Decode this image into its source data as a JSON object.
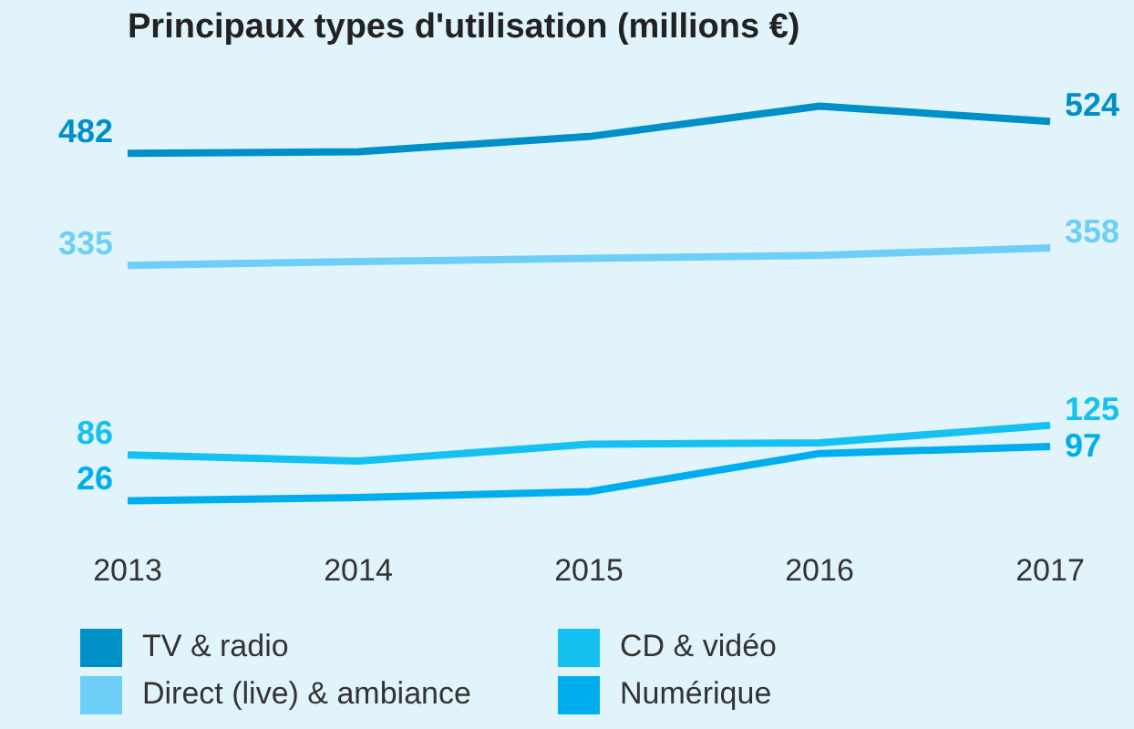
{
  "chart_data": {
    "type": "line",
    "title": "Principaux types d'utilisation (millions €)",
    "categories": [
      "2013",
      "2014",
      "2015",
      "2016",
      "2017"
    ],
    "tick_labels": "x",
    "grid": false,
    "legend": "bottom",
    "marker": "none",
    "series": [
      {
        "name": "TV & radio",
        "color": "#0090c8",
        "values": [
          482,
          484,
          504,
          544,
          524
        ],
        "value_labels": [
          "482",
          null,
          null,
          null,
          "524"
        ]
      },
      {
        "name": "Direct (live) & ambiance",
        "color": "#6dcff6",
        "values": [
          335,
          340,
          344,
          348,
          358
        ],
        "value_labels": [
          "335",
          null,
          null,
          null,
          "358"
        ]
      },
      {
        "name": "CD & vidéo",
        "color": "#14c1f0",
        "values": [
          86,
          78,
          100,
          102,
          125
        ],
        "value_labels": [
          "86",
          null,
          null,
          null,
          "125"
        ]
      },
      {
        "name": "Numérique",
        "color": "#00aeef",
        "values": [
          26,
          30,
          38,
          88,
          97
        ],
        "value_labels": [
          "26",
          null,
          null,
          null,
          "97"
        ]
      }
    ]
  }
}
